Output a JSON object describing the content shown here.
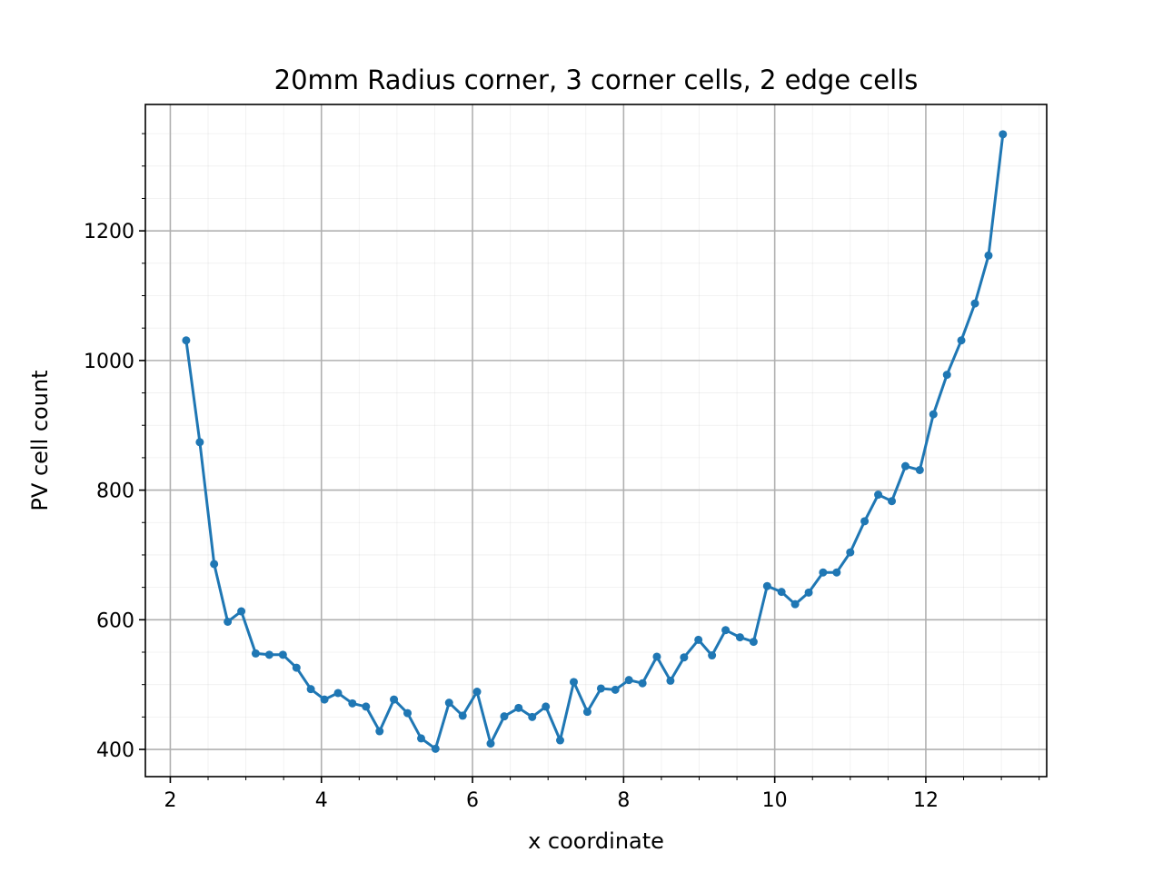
{
  "chart_data": {
    "type": "line",
    "title": "20mm Radius corner, 3 corner cells, 2 edge cells",
    "xlabel": "x coordinate",
    "ylabel": "PV cell count",
    "xlim": [
      1.67,
      13.6
    ],
    "ylim": [
      358,
      1395
    ],
    "xticks": [
      2,
      4,
      6,
      8,
      10,
      12
    ],
    "xtick_labels": [
      "2",
      "4",
      "6",
      "8",
      "10",
      "12"
    ],
    "yticks": [
      400,
      600,
      800,
      1000,
      1200
    ],
    "ytick_labels": [
      "400",
      "600",
      "800",
      "1000",
      "1200"
    ],
    "x_minor_step": 0.5,
    "y_minor_step": 50,
    "grid": true,
    "minor_grid": true,
    "line_color": "#1f77b4",
    "marker": "circle",
    "series": [
      {
        "x": [
          2.21,
          2.39,
          2.58,
          2.76,
          2.94,
          3.13,
          3.31,
          3.49,
          3.67,
          3.86,
          4.04,
          4.22,
          4.41,
          4.59,
          4.77,
          4.96,
          5.14,
          5.32,
          5.51,
          5.69,
          5.87,
          6.06,
          6.24,
          6.42,
          6.61,
          6.79,
          6.97,
          7.16,
          7.34,
          7.52,
          7.7,
          7.89,
          8.07,
          8.25,
          8.44,
          8.62,
          8.8,
          8.99,
          9.17,
          9.35,
          9.54,
          9.72,
          9.9,
          10.09,
          10.27,
          10.45,
          10.64,
          10.82,
          11.0,
          11.19,
          11.37,
          11.55,
          11.73,
          11.92,
          12.1,
          12.28,
          12.47,
          12.65,
          12.83,
          13.02
        ],
        "values": [
          1031,
          874,
          686,
          597,
          613,
          548,
          546,
          546,
          526,
          493,
          477,
          487,
          471,
          466,
          428,
          477,
          456,
          417,
          401,
          472,
          452,
          489,
          409,
          451,
          464,
          450,
          466,
          414,
          504,
          458,
          494,
          492,
          507,
          502,
          543,
          506,
          542,
          569,
          545,
          584,
          573,
          566,
          652,
          643,
          624,
          642,
          673,
          673,
          704,
          752,
          793,
          783,
          837,
          831,
          917,
          978,
          1031,
          1088,
          1162,
          1349
        ]
      }
    ]
  }
}
